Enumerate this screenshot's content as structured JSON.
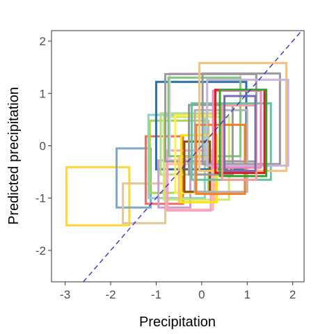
{
  "chart_data": {
    "type": "scatter",
    "title": "",
    "xlabel": "Precipitation",
    "ylabel": "Predicted precipitation",
    "xlim": [
      -3.3,
      2.25
    ],
    "ylim": [
      -2.6,
      2.2
    ],
    "x_ticks": [
      -3,
      -2,
      -1,
      0,
      1,
      2
    ],
    "x_tick_labels": [
      "-3",
      "-2",
      "-1",
      "0",
      "1",
      "2"
    ],
    "y_ticks": [
      -2,
      -1,
      0,
      1,
      2
    ],
    "y_tick_labels": [
      "-2",
      "-1",
      "0",
      "1",
      "2"
    ],
    "grid": false,
    "legend": "none",
    "reference_line": {
      "style": "dashed",
      "color": "#3333cc",
      "slope": 1,
      "intercept": 0
    },
    "rectangles": [
      {
        "x0": -2.97,
        "x1": -1.59,
        "y0": -1.52,
        "y1": -0.41,
        "color": "#fdd835"
      },
      {
        "x0": -1.87,
        "x1": -1.12,
        "y0": -1.18,
        "y1": -0.05,
        "color": "#7fa9c9"
      },
      {
        "x0": -1.73,
        "x1": -0.8,
        "y0": -1.48,
        "y1": -0.72,
        "color": "#e0c69a"
      },
      {
        "x0": -1.23,
        "x1": -0.41,
        "y0": -1.11,
        "y1": 0.18,
        "color": "#ef6b5b"
      },
      {
        "x0": -1.17,
        "x1": 0.07,
        "y0": -1.0,
        "y1": 0.59,
        "color": "#8fd3c3"
      },
      {
        "x0": -1.14,
        "x1": 0.15,
        "y0": -0.9,
        "y1": 0.48,
        "color": "#a6d854"
      },
      {
        "x0": -1.0,
        "x1": 0.98,
        "y0": -0.45,
        "y1": 1.22,
        "color": "#2c6ea6"
      },
      {
        "x0": -0.95,
        "x1": -0.25,
        "y0": -1.18,
        "y1": -0.28,
        "color": "#c7a0cf"
      },
      {
        "x0": -0.9,
        "x1": 0.5,
        "y0": -0.55,
        "y1": 0.62,
        "color": "#b2df8a"
      },
      {
        "x0": -0.83,
        "x1": 0.6,
        "y0": -1.03,
        "y1": 0.55,
        "color": "#cde86e"
      },
      {
        "x0": -0.78,
        "x1": 0.25,
        "y0": -1.22,
        "y1": -0.35,
        "color": "#ffb3b3"
      },
      {
        "x0": -0.75,
        "x1": 0.2,
        "y0": -1.24,
        "y1": -0.09,
        "color": "#f4a3c2"
      },
      {
        "x0": -0.7,
        "x1": 0.85,
        "y0": -0.29,
        "y1": 1.38,
        "color": "#e8c8e8"
      },
      {
        "x0": -0.8,
        "x1": 1.2,
        "y0": -0.3,
        "y1": 1.37,
        "color": "#9b9b9b"
      },
      {
        "x0": -0.73,
        "x1": 0.85,
        "y0": -0.2,
        "y1": 1.3,
        "color": "#7fc97f"
      },
      {
        "x0": -0.58,
        "x1": 0.28,
        "y0": -0.9,
        "y1": 0.58,
        "color": "#fff04d"
      },
      {
        "x0": -0.5,
        "x1": 0.28,
        "y0": -1.08,
        "y1": -0.22,
        "color": "#fcbf83"
      },
      {
        "x0": -0.45,
        "x1": 0.33,
        "y0": -1.08,
        "y1": 0.2,
        "color": "#ffe600"
      },
      {
        "x0": -0.38,
        "x1": 0.18,
        "y0": -0.88,
        "y1": 0.08,
        "color": "#8c510a"
      },
      {
        "x0": -0.28,
        "x1": 0.68,
        "y0": -0.55,
        "y1": 0.78,
        "color": "#999999"
      },
      {
        "x0": -0.22,
        "x1": 1.52,
        "y0": -0.65,
        "y1": 0.81,
        "color": "#66c2a5"
      },
      {
        "x0": -0.15,
        "x1": 1.0,
        "y0": -0.88,
        "y1": 0.68,
        "color": "#b3b3b3"
      },
      {
        "x0": -0.12,
        "x1": 0.95,
        "y0": -0.92,
        "y1": 0.4,
        "color": "#f47e20"
      },
      {
        "x0": -0.05,
        "x1": 1.86,
        "y0": -0.48,
        "y1": 1.58,
        "color": "#fbbf7a"
      },
      {
        "x0": 0.02,
        "x1": 1.72,
        "y0": -0.35,
        "y1": 1.38,
        "color": "#999999"
      },
      {
        "x0": 0.12,
        "x1": 1.9,
        "y0": -0.38,
        "y1": 1.26,
        "color": "#c6b3d9"
      },
      {
        "x0": 0.25,
        "x1": 1.3,
        "y0": -0.42,
        "y1": 1.05,
        "color": "#f781bf"
      },
      {
        "x0": 0.3,
        "x1": 1.38,
        "y0": -0.52,
        "y1": 1.07,
        "color": "#e31a1c"
      },
      {
        "x0": 0.4,
        "x1": 1.42,
        "y0": -0.58,
        "y1": 1.07,
        "color": "#33a02c"
      },
      {
        "x0": 0.45,
        "x1": 1.2,
        "y0": -0.65,
        "y1": 0.77,
        "color": "#fb9a99"
      },
      {
        "x0": 0.5,
        "x1": 1.18,
        "y0": -0.48,
        "y1": 0.95,
        "color": "#7570b3"
      }
    ]
  }
}
